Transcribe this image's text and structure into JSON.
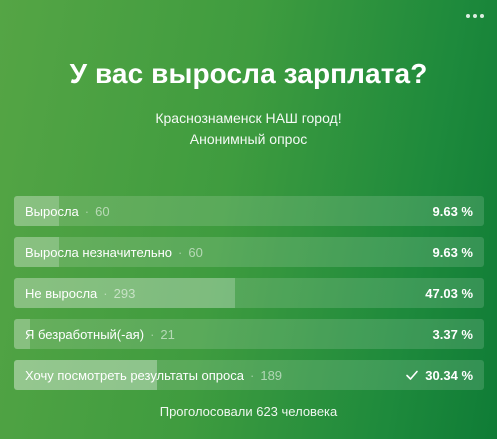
{
  "poll": {
    "title": "У вас выросла зарплата?",
    "subtitle_line1": "Краснознаменск НАШ город!",
    "subtitle_line2": "Анонимный опрос",
    "separator": "·",
    "options": [
      {
        "label": "Выросла",
        "count": "60",
        "percent": "9.63 %",
        "fraction": 0.0963,
        "chosen": false
      },
      {
        "label": "Выросла незначительно",
        "count": "60",
        "percent": "9.63 %",
        "fraction": 0.0963,
        "chosen": false
      },
      {
        "label": "Не выросла",
        "count": "293",
        "percent": "47.03 %",
        "fraction": 0.4703,
        "chosen": false
      },
      {
        "label": "Я безработный(-ая)",
        "count": "21",
        "percent": "3.37 %",
        "fraction": 0.0337,
        "chosen": false
      },
      {
        "label": "Хочу посмотреть результаты опроса",
        "count": "189",
        "percent": "30.34 %",
        "fraction": 0.3034,
        "chosen": true
      }
    ],
    "footer": "Проголосовали 623 человека",
    "menu_icon": "more-dots-icon",
    "chosen_icon": "checkmark-icon"
  },
  "colors": {
    "gradient_start": "#55a545",
    "gradient_end": "#0f7c36",
    "text": "#ffffff"
  }
}
